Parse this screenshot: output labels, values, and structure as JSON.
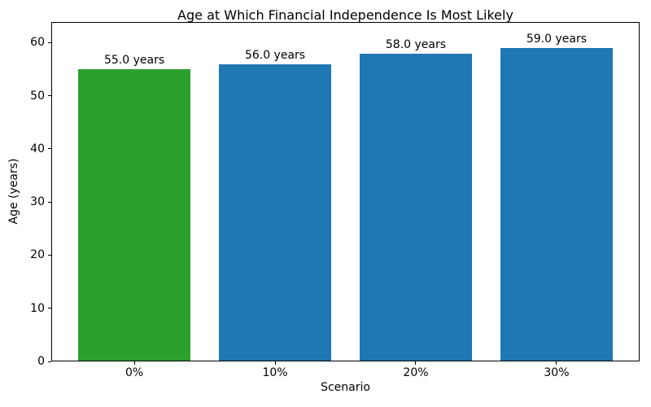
{
  "chart_data": {
    "type": "bar",
    "title": "Age at Which Financial Independence Is Most Likely",
    "xlabel": "Scenario",
    "ylabel": "Age (years)",
    "categories": [
      "0%",
      "10%",
      "20%",
      "30%"
    ],
    "values": [
      55.0,
      56.0,
      58.0,
      59.0
    ],
    "bar_labels": [
      "55.0 years",
      "56.0 years",
      "58.0 years",
      "59.0 years"
    ],
    "bar_colors": [
      "#2ca02c",
      "#1f77b4",
      "#1f77b4",
      "#1f77b4"
    ],
    "yticks": [
      0,
      10,
      20,
      30,
      40,
      50,
      60
    ],
    "ytick_labels": [
      "0",
      "10",
      "20",
      "30",
      "40",
      "50",
      "60"
    ],
    "ylim": [
      0,
      63.9
    ],
    "grid": false,
    "legend_position": "none",
    "bar_width_fraction": 0.8,
    "spine_color": "#000000",
    "background_color": "#ffffff"
  }
}
